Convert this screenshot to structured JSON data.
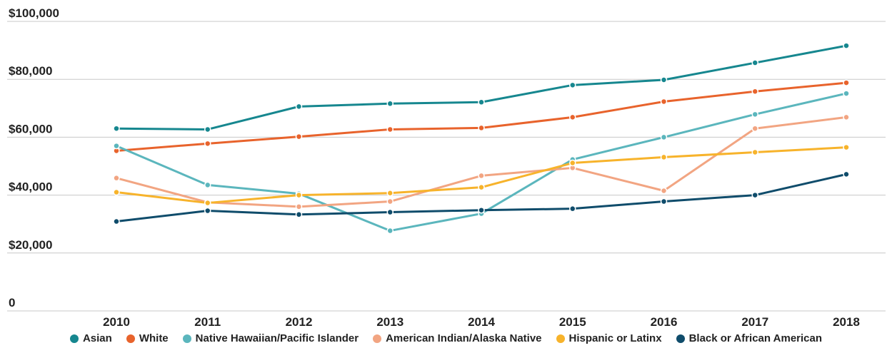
{
  "chart_data": {
    "type": "line",
    "categories": [
      "2010",
      "2011",
      "2012",
      "2013",
      "2014",
      "2015",
      "2016",
      "2017",
      "2018"
    ],
    "series": [
      {
        "name": "Asian",
        "color": "#16878f",
        "values": [
          63000,
          62700,
          70600,
          71600,
          72100,
          78000,
          79800,
          85700,
          91600
        ]
      },
      {
        "name": "White",
        "color": "#e8632c",
        "values": [
          55300,
          57800,
          60200,
          62700,
          63200,
          66900,
          72300,
          75800,
          78800
        ]
      },
      {
        "name": "Native Hawaiian/Pacific Islander",
        "color": "#5bb6bd",
        "values": [
          57000,
          43500,
          40500,
          27700,
          33600,
          52300,
          60000,
          67900,
          75100
        ]
      },
      {
        "name": "American Indian/Alaska Native",
        "color": "#f2a582",
        "values": [
          45900,
          37500,
          36000,
          37800,
          46700,
          49400,
          41500,
          63000,
          66900
        ]
      },
      {
        "name": "Hispanic or Latinx",
        "color": "#f7b32b",
        "values": [
          41000,
          37300,
          40000,
          40700,
          42700,
          51100,
          53100,
          54800,
          56500
        ]
      },
      {
        "name": "Black or African American",
        "color": "#0f4c6b",
        "values": [
          30900,
          34600,
          33300,
          34100,
          34800,
          35300,
          37800,
          40000,
          47200
        ]
      }
    ],
    "ylim": [
      0,
      100000
    ],
    "yticks": [
      0,
      {
        "value": 20000,
        "label": "$20,000"
      },
      {
        "value": 40000,
        "label": "$40,000"
      },
      {
        "value": 60000,
        "label": "$60,000"
      },
      {
        "value": 80000,
        "label": "$80,000"
      },
      {
        "value": 100000,
        "label": "$100,000"
      }
    ],
    "grid": true,
    "legend": "bottom"
  }
}
